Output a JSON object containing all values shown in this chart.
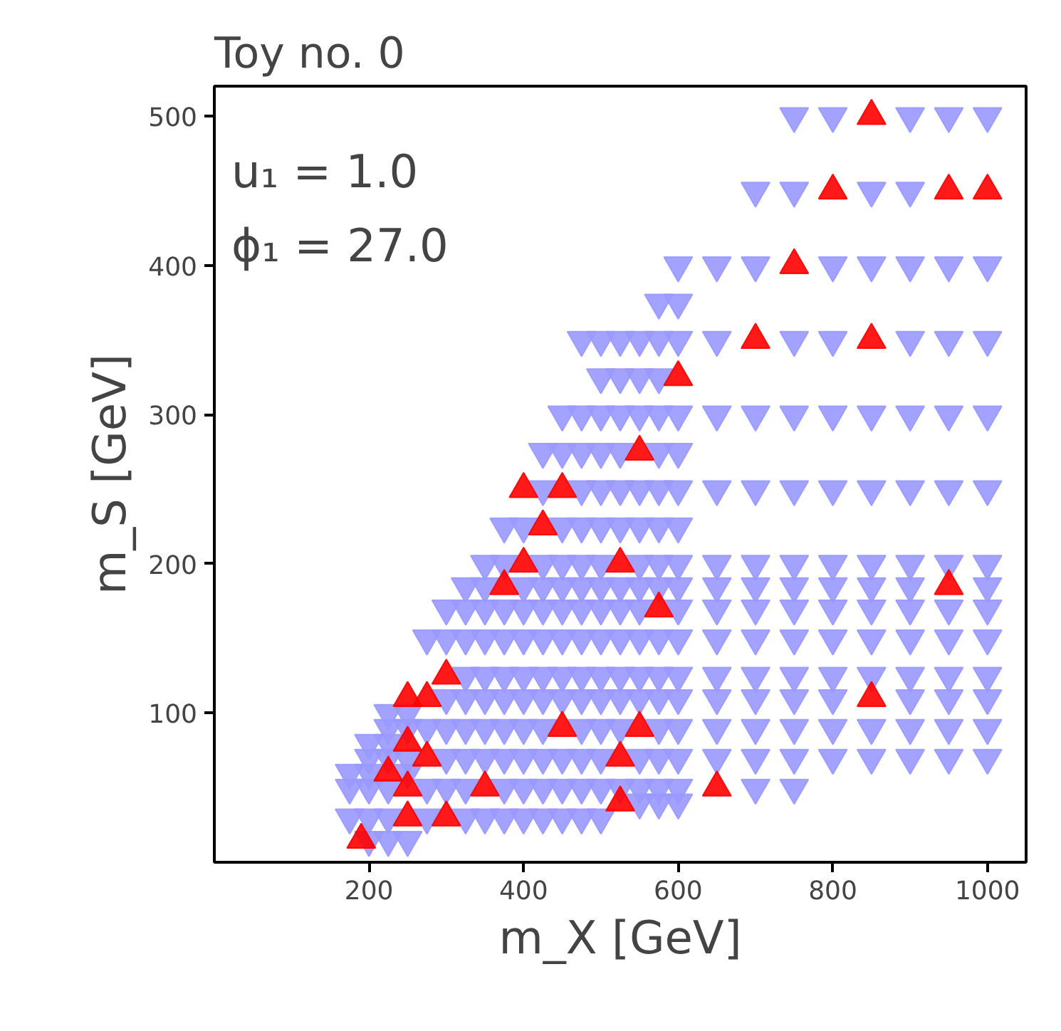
{
  "chart_data": {
    "type": "scatter",
    "title": "Toy no. 0",
    "xlabel": "m_X [GeV]",
    "ylabel": "m_S [GeV]",
    "annotations": [
      "u₁ = 1.0",
      "ϕ₁ = 27.0"
    ],
    "xlim": [
      0,
      1050
    ],
    "ylim": [
      0,
      520
    ],
    "xticks": [
      200,
      400,
      600,
      800,
      1000
    ],
    "yticks": [
      100,
      200,
      300,
      400,
      500
    ],
    "grid": false,
    "series": [
      {
        "color": "#9999ff",
        "marker": "triangle_down",
        "x": [
          750,
          800,
          900,
          950,
          1000,
          700,
          750,
          850,
          900,
          600,
          650,
          700,
          800,
          850,
          900,
          950,
          1000,
          575,
          600,
          475,
          500,
          525,
          550,
          575,
          600,
          650,
          750,
          800,
          900,
          950,
          1000,
          500,
          525,
          550,
          575,
          450,
          475,
          500,
          525,
          550,
          575,
          600,
          650,
          700,
          750,
          800,
          850,
          900,
          950,
          1000,
          425,
          450,
          475,
          500,
          525,
          575,
          600,
          425,
          475,
          500,
          525,
          550,
          575,
          600,
          650,
          700,
          750,
          800,
          850,
          900,
          950,
          1000,
          375,
          400,
          450,
          475,
          500,
          525,
          550,
          575,
          600,
          350,
          375,
          425,
          450,
          475,
          500,
          550,
          575,
          600,
          650,
          700,
          750,
          800,
          850,
          900,
          950,
          1000,
          325,
          350,
          400,
          425,
          450,
          475,
          500,
          525,
          550,
          575,
          600,
          650,
          700,
          750,
          800,
          850,
          900,
          1000,
          300,
          325,
          350,
          375,
          400,
          425,
          450,
          475,
          500,
          525,
          550,
          600,
          650,
          700,
          750,
          800,
          850,
          900,
          950,
          1000,
          275,
          300,
          325,
          350,
          375,
          400,
          425,
          450,
          475,
          500,
          525,
          550,
          575,
          600,
          650,
          700,
          750,
          800,
          850,
          900,
          950,
          1000,
          325,
          350,
          375,
          400,
          425,
          450,
          475,
          500,
          525,
          550,
          575,
          600,
          650,
          700,
          750,
          800,
          850,
          900,
          950,
          1000,
          300,
          325,
          350,
          375,
          400,
          425,
          450,
          475,
          500,
          525,
          550,
          575,
          600,
          650,
          700,
          750,
          800,
          900,
          950,
          1000,
          225,
          250,
          225,
          250,
          275,
          300,
          325,
          350,
          375,
          400,
          425,
          475,
          500,
          525,
          575,
          600,
          650,
          700,
          750,
          800,
          850,
          900,
          950,
          1000,
          200,
          225,
          200,
          225,
          250,
          300,
          325,
          350,
          375,
          400,
          425,
          450,
          475,
          500,
          550,
          575,
          600,
          650,
          700,
          750,
          800,
          850,
          900,
          950,
          1000,
          175,
          200,
          250,
          175,
          200,
          225,
          275,
          300,
          325,
          375,
          400,
          425,
          450,
          475,
          500,
          525,
          550,
          575,
          600,
          700,
          750,
          550,
          575,
          600,
          175,
          200,
          225,
          275,
          325,
          350,
          375,
          400,
          425,
          450,
          475,
          500,
          200,
          225,
          250
        ],
        "values": [
          500,
          500,
          500,
          500,
          500,
          450,
          450,
          450,
          450,
          400,
          400,
          400,
          400,
          400,
          400,
          400,
          400,
          375,
          375,
          350,
          350,
          350,
          350,
          350,
          350,
          350,
          350,
          350,
          350,
          350,
          350,
          325,
          325,
          325,
          325,
          300,
          300,
          300,
          300,
          300,
          300,
          300,
          300,
          300,
          300,
          300,
          300,
          300,
          300,
          300,
          275,
          275,
          275,
          275,
          275,
          275,
          275,
          250,
          250,
          250,
          250,
          250,
          250,
          250,
          250,
          250,
          250,
          250,
          250,
          250,
          250,
          250,
          225,
          225,
          225,
          225,
          225,
          225,
          225,
          225,
          225,
          200,
          200,
          200,
          200,
          200,
          200,
          200,
          200,
          200,
          200,
          200,
          200,
          200,
          200,
          200,
          200,
          200,
          185,
          185,
          185,
          185,
          185,
          185,
          185,
          185,
          185,
          185,
          185,
          185,
          185,
          185,
          185,
          185,
          185,
          185,
          170,
          170,
          170,
          170,
          170,
          170,
          170,
          170,
          170,
          170,
          170,
          170,
          170,
          170,
          170,
          170,
          170,
          170,
          170,
          170,
          150,
          150,
          150,
          150,
          150,
          150,
          150,
          150,
          150,
          150,
          150,
          150,
          150,
          150,
          150,
          150,
          150,
          150,
          150,
          150,
          150,
          150,
          125,
          125,
          125,
          125,
          125,
          125,
          125,
          125,
          125,
          125,
          125,
          125,
          125,
          125,
          125,
          125,
          125,
          125,
          125,
          125,
          110,
          110,
          110,
          110,
          110,
          110,
          110,
          110,
          110,
          110,
          110,
          110,
          110,
          110,
          110,
          110,
          110,
          110,
          110,
          110,
          100,
          100,
          90,
          90,
          90,
          90,
          90,
          90,
          90,
          90,
          90,
          90,
          90,
          90,
          90,
          90,
          90,
          90,
          90,
          90,
          90,
          90,
          90,
          90,
          80,
          80,
          70,
          70,
          70,
          70,
          70,
          70,
          70,
          70,
          70,
          70,
          70,
          70,
          70,
          70,
          70,
          70,
          70,
          70,
          70,
          70,
          70,
          70,
          70,
          60,
          60,
          60,
          50,
          50,
          50,
          50,
          50,
          50,
          50,
          50,
          50,
          50,
          50,
          50,
          50,
          50,
          50,
          50,
          50,
          50,
          40,
          40,
          40,
          30,
          30,
          30,
          30,
          30,
          30,
          30,
          30,
          30,
          30,
          30,
          30,
          15,
          15,
          15
        ]
      },
      {
        "color": "#ff0000",
        "marker": "triangle",
        "x": [
          850,
          800,
          950,
          1000,
          750,
          700,
          850,
          600,
          550,
          400,
          450,
          425,
          400,
          525,
          375,
          950,
          575,
          300,
          250,
          275,
          850,
          450,
          550,
          250,
          275,
          525,
          225,
          250,
          350,
          650,
          525,
          250,
          300,
          190
        ],
        "values": [
          500,
          450,
          450,
          450,
          400,
          350,
          350,
          325,
          275,
          250,
          250,
          225,
          200,
          200,
          185,
          185,
          170,
          125,
          110,
          110,
          110,
          90,
          90,
          80,
          70,
          70,
          60,
          50,
          50,
          50,
          40,
          30,
          30,
          15
        ]
      }
    ]
  }
}
